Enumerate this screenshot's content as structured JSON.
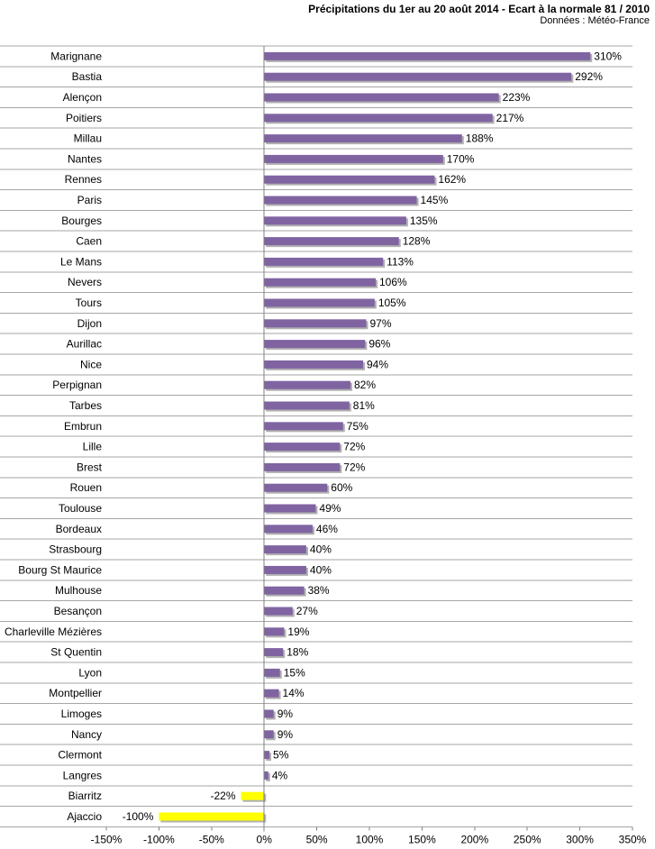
{
  "chart_data": {
    "type": "bar",
    "orientation": "horizontal",
    "title": "Précipitations du 1er au 20 août 2014 - Ecart à la normale 81 / 2010",
    "subtitle": "Données : Météo-France",
    "categories": [
      "Marignane",
      "Bastia",
      "Alençon",
      "Poitiers",
      "Millau",
      "Nantes",
      "Rennes",
      "Paris",
      "Bourges",
      "Caen",
      "Le Mans",
      "Nevers",
      "Tours",
      "Dijon",
      "Aurillac",
      "Nice",
      "Perpignan",
      "Tarbes",
      "Embrun",
      "Lille",
      "Brest",
      "Rouen",
      "Toulouse",
      "Bordeaux",
      "Strasbourg",
      "Bourg St Maurice",
      "Mulhouse",
      "Besançon",
      "Charleville Mézières",
      "St Quentin",
      "Lyon",
      "Montpellier",
      "Limoges",
      "Nancy",
      "Clermont",
      "Langres",
      "Biarritz",
      "Ajaccio"
    ],
    "values": [
      310,
      292,
      223,
      217,
      188,
      170,
      162,
      145,
      135,
      128,
      113,
      106,
      105,
      97,
      96,
      94,
      82,
      81,
      75,
      72,
      72,
      60,
      49,
      46,
      40,
      40,
      38,
      27,
      19,
      18,
      15,
      14,
      9,
      9,
      5,
      4,
      -22,
      -100
    ],
    "value_labels": [
      "310%",
      "292%",
      "223%",
      "217%",
      "188%",
      "170%",
      "162%",
      "145%",
      "135%",
      "128%",
      "113%",
      "106%",
      "105%",
      "97%",
      "96%",
      "94%",
      "82%",
      "81%",
      "75%",
      "72%",
      "72%",
      "60%",
      "49%",
      "46%",
      "40%",
      "40%",
      "38%",
      "27%",
      "19%",
      "18%",
      "15%",
      "14%",
      "9%",
      "9%",
      "5%",
      "4%",
      "-22%",
      "-100%"
    ],
    "xlim": [
      -150,
      350
    ],
    "x_ticks": [
      -150,
      -100,
      -50,
      0,
      50,
      100,
      150,
      200,
      250,
      300,
      350
    ],
    "x_tick_labels": [
      "-150%",
      "-100%",
      "-50%",
      "0%",
      "50%",
      "100%",
      "150%",
      "200%",
      "250%",
      "300%",
      "350%"
    ],
    "grid": "horizontal",
    "colors": {
      "positive": "#8064a2",
      "negative": "#ffff00",
      "shadow": "#b0b0b0",
      "grid": "#a6a6a6",
      "axis": "#808080"
    }
  }
}
